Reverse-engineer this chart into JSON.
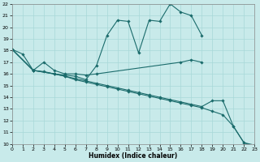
{
  "xlabel": "Humidex (Indice chaleur)",
  "bg_color": "#c8eaea",
  "grid_color": "#a8d8d8",
  "line_color": "#1a6b6b",
  "x_min": 0,
  "x_max": 23,
  "y_min": 10,
  "y_max": 22,
  "lines": [
    {
      "x": [
        0,
        1,
        2,
        3,
        4,
        5,
        6,
        7,
        8,
        9,
        10,
        11,
        12,
        13,
        14,
        15,
        16,
        17,
        18
      ],
      "y": [
        18.1,
        17.7,
        16.3,
        16.2,
        16.0,
        15.9,
        15.8,
        15.5,
        16.7,
        19.3,
        20.6,
        20.5,
        17.8,
        20.6,
        20.5,
        22.0,
        21.3,
        21.0,
        19.3
      ]
    },
    {
      "x": [
        0,
        2,
        3,
        4,
        5,
        6,
        7,
        8,
        16,
        17,
        18
      ],
      "y": [
        18.1,
        16.3,
        17.0,
        16.3,
        16.0,
        16.0,
        15.9,
        16.0,
        17.0,
        17.2,
        17.0
      ]
    },
    {
      "x": [
        0,
        2,
        4,
        5,
        6,
        7,
        8,
        9,
        10,
        11,
        12,
        13,
        14,
        15,
        16,
        17,
        18,
        19,
        20,
        21,
        22,
        23
      ],
      "y": [
        18.1,
        16.3,
        16.0,
        15.8,
        15.6,
        15.4,
        15.2,
        15.0,
        14.8,
        14.6,
        14.4,
        14.2,
        14.0,
        13.8,
        13.6,
        13.4,
        13.2,
        13.7,
        13.7,
        11.5,
        10.1,
        9.9
      ]
    },
    {
      "x": [
        0,
        2,
        4,
        5,
        6,
        7,
        8,
        9,
        10,
        11,
        12,
        13,
        14,
        15,
        16,
        17,
        18,
        19,
        20,
        21,
        22,
        23
      ],
      "y": [
        18.1,
        16.3,
        16.0,
        15.8,
        15.5,
        15.3,
        15.1,
        14.9,
        14.7,
        14.5,
        14.3,
        14.1,
        13.9,
        13.7,
        13.5,
        13.3,
        13.1,
        12.8,
        12.5,
        11.5,
        10.1,
        9.8
      ]
    }
  ]
}
